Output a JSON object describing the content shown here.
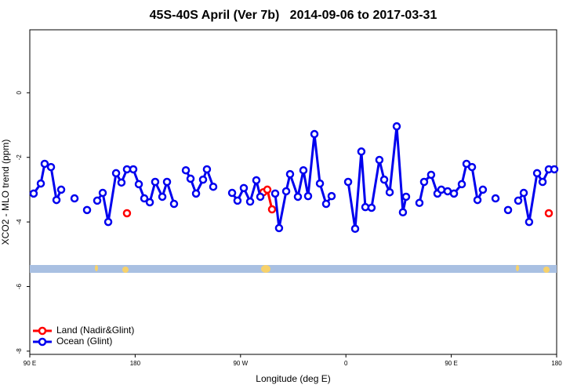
{
  "chart_data": {
    "type": "line",
    "title": "45S-40S April (Ver 7b)   2014-09-06 to 2017-03-31",
    "xlabel": "Longitude (deg E)",
    "ylabel": "XCO2 - MLO trend (ppm)",
    "xlim": [
      90,
      540
    ],
    "ylim": [
      -8.1,
      1.95
    ],
    "xticks": [
      {
        "value": 90,
        "label": "90 E"
      },
      180,
      {
        "value": 270,
        "label": "90 W"
      },
      {
        "value": 360,
        "label": "0"
      },
      {
        "value": 450,
        "label": "90 E"
      },
      {
        "value": 540,
        "label": "180"
      }
    ],
    "yticks": [
      0,
      -2,
      -4,
      -6,
      -8
    ],
    "legend": "bottom-left",
    "series": [
      {
        "name": "Land (Nadir&Glint)",
        "color": "#ff0000",
        "x": [
          173,
          null,
          289.5,
          292.9,
          296.9,
          null,
          533.3
        ],
        "values": [
          -3.73,
          null,
          -3.08,
          -3.0,
          -3.61,
          null,
          -3.73
        ]
      },
      {
        "name": "Ocean (Glint)",
        "color": "#0000ee",
        "x": [
          93.3,
          99.4,
          102.7,
          108.1,
          112.8,
          116.8,
          null,
          128.2,
          null,
          138.9,
          null,
          147.6,
          152.3,
          157,
          163.7,
          168.3,
          173,
          178.4,
          183.1,
          187.8,
          192.5,
          197.1,
          203.2,
          207.2,
          213.2,
          null,
          223.3,
          227.3,
          232,
          238,
          241.3,
          246.7,
          null,
          262.8,
          267.4,
          272.8,
          278.2,
          283.5,
          286.9,
          null,
          299.6,
          302.9,
          309,
          312.3,
          319,
          323.7,
          327.7,
          333.1,
          337.8,
          343.1,
          347.8,
          null,
          361.9,
          367.9,
          373.2,
          376.6,
          381.9,
          388.6,
          392.7,
          397.4,
          403.4,
          408.7,
          411.4,
          null,
          422.8,
          426.8,
          432.8,
          438.2,
          441.5,
          446.9,
          452.3,
          459,
          463,
          467.7,
          472.4,
          477,
          null,
          487.8,
          null,
          498.5,
          null,
          507.2,
          511.9,
          516.5,
          523.3,
          528,
          533.3,
          538
        ],
        "values": [
          -3.12,
          -2.81,
          -2.2,
          -2.3,
          -3.32,
          -3.0,
          null,
          -3.27,
          null,
          -3.63,
          null,
          -3.34,
          -3.1,
          -4.0,
          -2.49,
          -2.78,
          -2.37,
          -2.37,
          -2.83,
          -3.27,
          -3.39,
          -2.76,
          -3.22,
          -2.76,
          -3.44,
          null,
          -2.4,
          -2.66,
          -3.12,
          -2.69,
          -2.37,
          -2.91,
          null,
          -3.1,
          -3.34,
          -2.95,
          -3.37,
          -2.71,
          -3.22,
          null,
          -3.12,
          -4.19,
          -3.05,
          -2.52,
          -3.22,
          -2.4,
          -3.2,
          -1.28,
          -2.81,
          -3.44,
          -3.2,
          null,
          -2.76,
          -4.21,
          -1.82,
          -3.54,
          -3.56,
          -2.08,
          -2.69,
          -3.08,
          -1.04,
          -3.7,
          -3.22,
          null,
          -3.41,
          -2.76,
          -2.54,
          -3.12,
          -3.0,
          -3.05,
          -3.12,
          -2.83,
          -2.2,
          -2.3,
          -3.32,
          -3.0,
          null,
          -3.27,
          null,
          -3.63,
          null,
          -3.34,
          -3.1,
          -4.0,
          -2.49,
          -2.76,
          -2.37,
          -2.37
        ]
      }
    ]
  }
}
